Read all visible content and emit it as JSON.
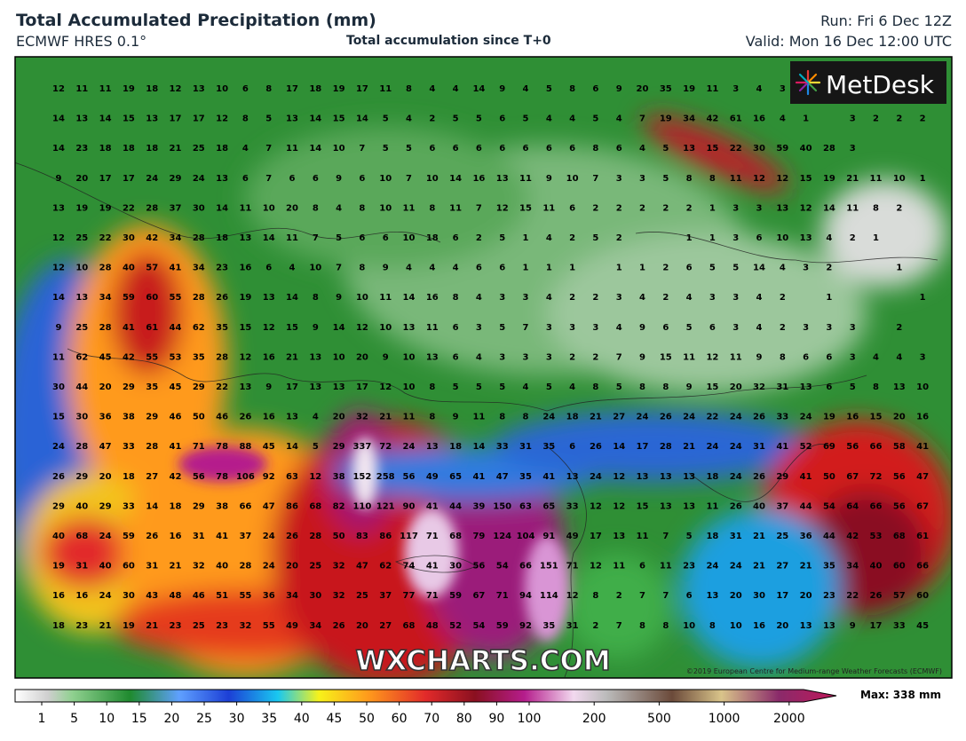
{
  "header": {
    "title": "Total Accumulated Precipitation (mm)",
    "model": "ECMWF HRES 0.1°",
    "subtitle": "Total accumulation since T+0",
    "run": "Run: Fri 6 Dec 12Z",
    "valid": "Valid: Mon 16 Dec 12:00 UTC"
  },
  "logo": "MetDesk",
  "watermark": "WXCHARTS.COM",
  "copyright": "©2019 European Centre for Medium-range Weather Forecasts (ECMWF)",
  "grid": {
    "rows": [
      [
        12,
        11,
        11,
        19,
        18,
        12,
        13,
        10,
        6,
        8,
        17,
        18,
        19,
        17,
        11,
        8,
        4,
        4,
        14,
        9,
        4,
        5,
        8,
        6,
        9,
        20,
        35,
        19,
        11,
        3,
        4,
        3
      ],
      [
        14,
        13,
        14,
        15,
        13,
        17,
        17,
        12,
        8,
        5,
        13,
        14,
        15,
        14,
        5,
        4,
        2,
        5,
        5,
        6,
        5,
        4,
        4,
        5,
        4,
        7,
        19,
        34,
        42,
        61,
        16,
        4,
        1,
        null,
        3,
        2,
        2,
        2
      ],
      [
        14,
        23,
        18,
        18,
        18,
        21,
        25,
        18,
        4,
        7,
        11,
        14,
        10,
        7,
        5,
        5,
        6,
        6,
        6,
        6,
        6,
        6,
        6,
        8,
        6,
        4,
        5,
        13,
        15,
        22,
        30,
        59,
        40,
        28,
        3
      ],
      [
        9,
        20,
        17,
        17,
        24,
        29,
        24,
        13,
        6,
        7,
        6,
        6,
        9,
        6,
        10,
        7,
        10,
        14,
        16,
        13,
        11,
        9,
        10,
        7,
        3,
        3,
        5,
        8,
        8,
        11,
        12,
        12,
        15,
        19,
        21,
        11,
        10,
        1
      ],
      [
        13,
        19,
        19,
        22,
        28,
        37,
        30,
        14,
        11,
        10,
        20,
        8,
        4,
        8,
        10,
        11,
        8,
        11,
        7,
        12,
        15,
        11,
        6,
        2,
        2,
        2,
        2,
        2,
        1,
        3,
        3,
        13,
        12,
        14,
        11,
        8,
        2
      ],
      [
        12,
        25,
        22,
        30,
        42,
        34,
        28,
        18,
        13,
        14,
        11,
        7,
        5,
        6,
        6,
        10,
        18,
        6,
        2,
        5,
        1,
        4,
        2,
        5,
        2,
        null,
        null,
        1,
        1,
        3,
        6,
        10,
        13,
        4,
        2,
        1
      ],
      [
        12,
        10,
        28,
        40,
        57,
        41,
        34,
        23,
        16,
        6,
        4,
        10,
        7,
        8,
        9,
        4,
        4,
        4,
        6,
        6,
        1,
        1,
        1,
        null,
        1,
        1,
        2,
        6,
        5,
        5,
        14,
        4,
        3,
        2,
        null,
        null,
        1
      ],
      [
        14,
        13,
        34,
        59,
        60,
        55,
        28,
        26,
        19,
        13,
        14,
        8,
        9,
        10,
        11,
        14,
        16,
        8,
        4,
        3,
        3,
        4,
        2,
        2,
        3,
        4,
        2,
        4,
        3,
        3,
        4,
        2,
        null,
        1,
        null,
        null,
        null,
        1
      ],
      [
        9,
        25,
        28,
        41,
        61,
        44,
        62,
        35,
        15,
        12,
        15,
        9,
        14,
        12,
        10,
        13,
        11,
        6,
        3,
        5,
        7,
        3,
        3,
        3,
        4,
        9,
        6,
        5,
        6,
        3,
        4,
        2,
        3,
        3,
        3,
        null,
        2
      ],
      [
        11,
        62,
        45,
        42,
        55,
        53,
        35,
        28,
        12,
        16,
        21,
        13,
        10,
        20,
        9,
        10,
        13,
        6,
        4,
        3,
        3,
        3,
        2,
        2,
        7,
        9,
        15,
        11,
        12,
        11,
        9,
        8,
        6,
        6,
        3,
        4,
        4,
        3
      ],
      [
        30,
        44,
        20,
        29,
        35,
        45,
        29,
        22,
        13,
        9,
        17,
        13,
        13,
        17,
        12,
        10,
        8,
        5,
        5,
        5,
        4,
        5,
        4,
        8,
        5,
        8,
        8,
        9,
        15,
        20,
        32,
        31,
        13,
        6,
        5,
        8,
        13,
        10
      ],
      [
        15,
        30,
        36,
        38,
        29,
        46,
        50,
        46,
        26,
        16,
        13,
        4,
        20,
        32,
        21,
        11,
        8,
        9,
        11,
        8,
        8,
        24,
        18,
        21,
        27,
        24,
        26,
        24,
        22,
        24,
        26,
        33,
        24,
        19,
        16,
        15,
        20,
        16
      ],
      [
        24,
        28,
        47,
        33,
        28,
        41,
        71,
        78,
        88,
        45,
        14,
        5,
        29,
        337,
        72,
        24,
        13,
        18,
        14,
        33,
        31,
        35,
        6,
        26,
        14,
        17,
        28,
        21,
        24,
        24,
        31,
        41,
        52,
        69,
        56,
        66,
        58,
        41
      ],
      [
        26,
        29,
        20,
        18,
        27,
        42,
        56,
        78,
        106,
        92,
        63,
        12,
        38,
        152,
        258,
        56,
        49,
        65,
        41,
        47,
        35,
        41,
        13,
        24,
        12,
        13,
        13,
        13,
        18,
        24,
        26,
        29,
        41,
        50,
        67,
        72,
        56,
        47
      ],
      [
        29,
        40,
        29,
        33,
        14,
        18,
        29,
        38,
        66,
        47,
        86,
        68,
        82,
        110,
        121,
        90,
        41,
        44,
        39,
        150,
        63,
        65,
        33,
        12,
        12,
        15,
        13,
        13,
        11,
        26,
        40,
        37,
        44,
        54,
        64,
        66,
        56,
        67
      ],
      [
        40,
        68,
        24,
        59,
        26,
        16,
        31,
        41,
        37,
        24,
        26,
        28,
        50,
        83,
        86,
        117,
        71,
        68,
        79,
        124,
        104,
        91,
        49,
        17,
        13,
        11,
        7,
        5,
        18,
        31,
        21,
        25,
        36,
        44,
        42,
        53,
        68,
        61
      ],
      [
        19,
        31,
        40,
        60,
        31,
        21,
        32,
        40,
        28,
        24,
        20,
        25,
        32,
        47,
        62,
        74,
        41,
        30,
        56,
        54,
        66,
        151,
        71,
        12,
        11,
        6,
        11,
        23,
        24,
        24,
        21,
        27,
        21,
        35,
        34,
        40,
        60,
        66
      ],
      [
        16,
        16,
        24,
        30,
        43,
        48,
        46,
        51,
        55,
        36,
        34,
        30,
        32,
        25,
        37,
        77,
        71,
        59,
        67,
        71,
        94,
        114,
        12,
        8,
        2,
        7,
        7,
        6,
        13,
        20,
        30,
        17,
        20,
        23,
        22,
        26,
        57,
        60
      ],
      [
        18,
        23,
        21,
        19,
        21,
        23,
        25,
        23,
        32,
        55,
        49,
        34,
        26,
        20,
        27,
        68,
        48,
        52,
        54,
        59,
        92,
        35,
        31,
        2,
        7,
        8,
        8,
        10,
        8,
        10,
        16,
        20,
        13,
        13,
        9,
        17,
        33,
        45
      ]
    ]
  },
  "colorbar": {
    "labels": [
      1,
      5,
      10,
      15,
      20,
      25,
      30,
      35,
      40,
      45,
      50,
      60,
      70,
      80,
      90,
      100,
      200,
      500,
      1000,
      2000
    ],
    "max": "Max: 338 mm"
  }
}
